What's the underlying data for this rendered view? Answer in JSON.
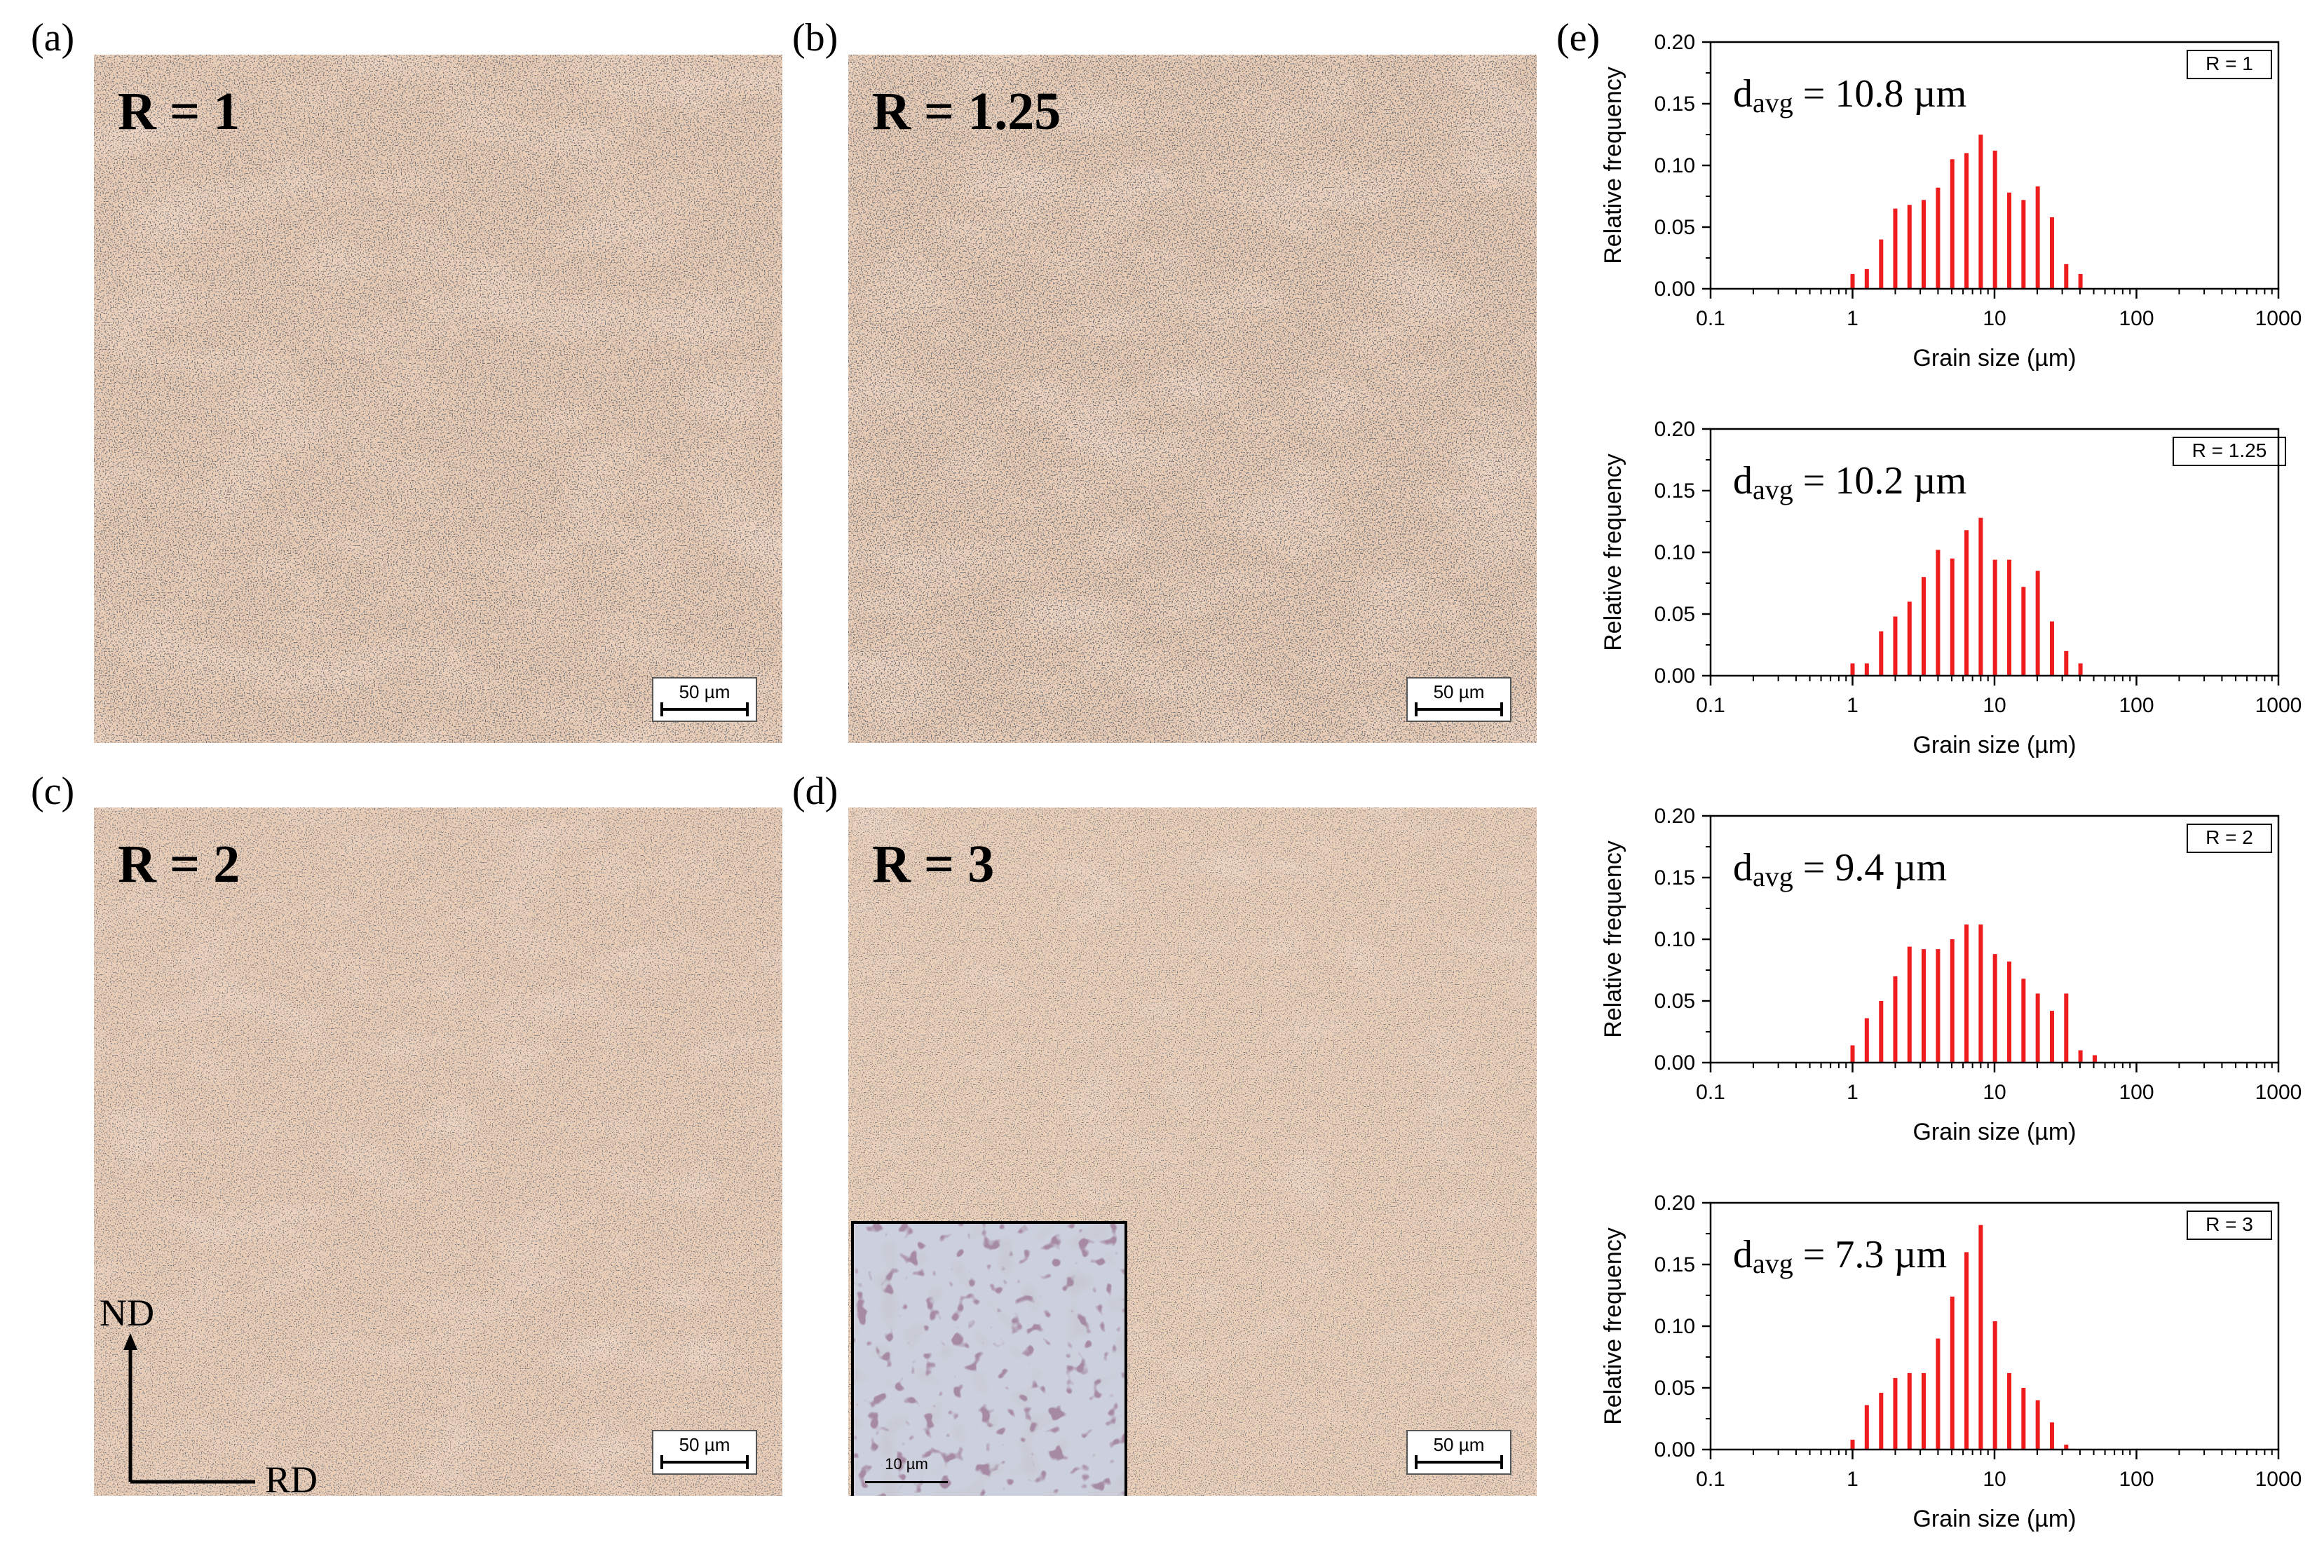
{
  "panels": {
    "a": {
      "letter": "(a)",
      "label": "R = 1",
      "scale": "50 µm"
    },
    "b": {
      "letter": "(b)",
      "label": "R = 1.25",
      "scale": "50 µm"
    },
    "c": {
      "letter": "(c)",
      "label": "R = 2",
      "scale": "50 µm",
      "axis_vertical": "ND",
      "axis_horizontal": "RD"
    },
    "d": {
      "letter": "(d)",
      "label": "R = 3",
      "scale": "50 µm",
      "inset_scale": "10 µm"
    },
    "e": {
      "letter": "(e)"
    }
  },
  "colors": {
    "bar": "#ee1c1c",
    "micro_base": "#e6c6ad",
    "micro_grain": "#e0b69a",
    "particle": "#2a2f35"
  },
  "chart_data": [
    {
      "type": "bar",
      "xlabel": "Grain size (µm)",
      "ylabel": "Relative frequency",
      "x_scale": "log",
      "xlim": [
        0.1,
        1000
      ],
      "ylim": [
        0,
        0.2
      ],
      "xticks": [
        "0.1",
        "1",
        "10",
        "100",
        "1000"
      ],
      "yticks": [
        "0.00",
        "0.05",
        "0.10",
        "0.15",
        "0.20"
      ],
      "legend": "R = 1",
      "annotation": {
        "d": "d",
        "sub": "avg",
        "rest": " = 10.8 µm"
      },
      "x": [
        1.0,
        1.26,
        1.59,
        2.0,
        2.52,
        3.17,
        4.0,
        5.04,
        6.35,
        8.0,
        10.08,
        12.7,
        16.0,
        20.16,
        25.4,
        32.0,
        40.32,
        50.8
      ],
      "values": [
        0.012,
        0.016,
        0.04,
        0.065,
        0.068,
        0.072,
        0.082,
        0.105,
        0.11,
        0.125,
        0.112,
        0.078,
        0.072,
        0.083,
        0.058,
        0.02,
        0.012,
        0.0
      ]
    },
    {
      "type": "bar",
      "xlabel": "Grain size (µm)",
      "ylabel": "Relative frequency",
      "x_scale": "log",
      "xlim": [
        0.1,
        1000
      ],
      "ylim": [
        0,
        0.2
      ],
      "xticks": [
        "0.1",
        "1",
        "10",
        "100",
        "1000"
      ],
      "yticks": [
        "0.00",
        "0.05",
        "0.10",
        "0.15",
        "0.20"
      ],
      "legend": "R = 1.25",
      "annotation": {
        "d": "d",
        "sub": "avg",
        "rest": " = 10.2 µm"
      },
      "x": [
        1.0,
        1.26,
        1.59,
        2.0,
        2.52,
        3.17,
        4.0,
        5.04,
        6.35,
        8.0,
        10.08,
        12.7,
        16.0,
        20.16,
        25.4,
        32.0,
        40.32,
        50.8
      ],
      "values": [
        0.01,
        0.01,
        0.036,
        0.048,
        0.06,
        0.08,
        0.102,
        0.095,
        0.118,
        0.128,
        0.094,
        0.094,
        0.072,
        0.085,
        0.044,
        0.02,
        0.01,
        0.0
      ]
    },
    {
      "type": "bar",
      "xlabel": "Grain size (µm)",
      "ylabel": "Relative frequency",
      "x_scale": "log",
      "xlim": [
        0.1,
        1000
      ],
      "ylim": [
        0,
        0.2
      ],
      "xticks": [
        "0.1",
        "1",
        "10",
        "100",
        "1000"
      ],
      "yticks": [
        "0.00",
        "0.05",
        "0.10",
        "0.15",
        "0.20"
      ],
      "legend": "R = 2",
      "annotation": {
        "d": "d",
        "sub": "avg",
        "rest": " = 9.4 µm"
      },
      "x": [
        1.0,
        1.26,
        1.59,
        2.0,
        2.52,
        3.17,
        4.0,
        5.04,
        6.35,
        8.0,
        10.08,
        12.7,
        16.0,
        20.16,
        25.4,
        32.0,
        40.32,
        50.8
      ],
      "values": [
        0.014,
        0.036,
        0.05,
        0.07,
        0.094,
        0.092,
        0.092,
        0.1,
        0.112,
        0.112,
        0.088,
        0.082,
        0.068,
        0.056,
        0.042,
        0.056,
        0.01,
        0.006
      ]
    },
    {
      "type": "bar",
      "xlabel": "Grain size (µm)",
      "ylabel": "Relative frequency",
      "x_scale": "log",
      "xlim": [
        0.1,
        1000
      ],
      "ylim": [
        0,
        0.2
      ],
      "xticks": [
        "0.1",
        "1",
        "10",
        "100",
        "1000"
      ],
      "yticks": [
        "0.00",
        "0.05",
        "0.10",
        "0.15",
        "0.20"
      ],
      "legend": "R = 3",
      "annotation": {
        "d": "d",
        "sub": "avg",
        "rest": " = 7.3 µm"
      },
      "x": [
        1.0,
        1.26,
        1.59,
        2.0,
        2.52,
        3.17,
        4.0,
        5.04,
        6.35,
        8.0,
        10.08,
        12.7,
        16.0,
        20.16,
        25.4,
        32.0
      ],
      "values": [
        0.008,
        0.036,
        0.046,
        0.058,
        0.062,
        0.062,
        0.09,
        0.124,
        0.16,
        0.182,
        0.104,
        0.062,
        0.05,
        0.04,
        0.022,
        0.004
      ]
    }
  ]
}
